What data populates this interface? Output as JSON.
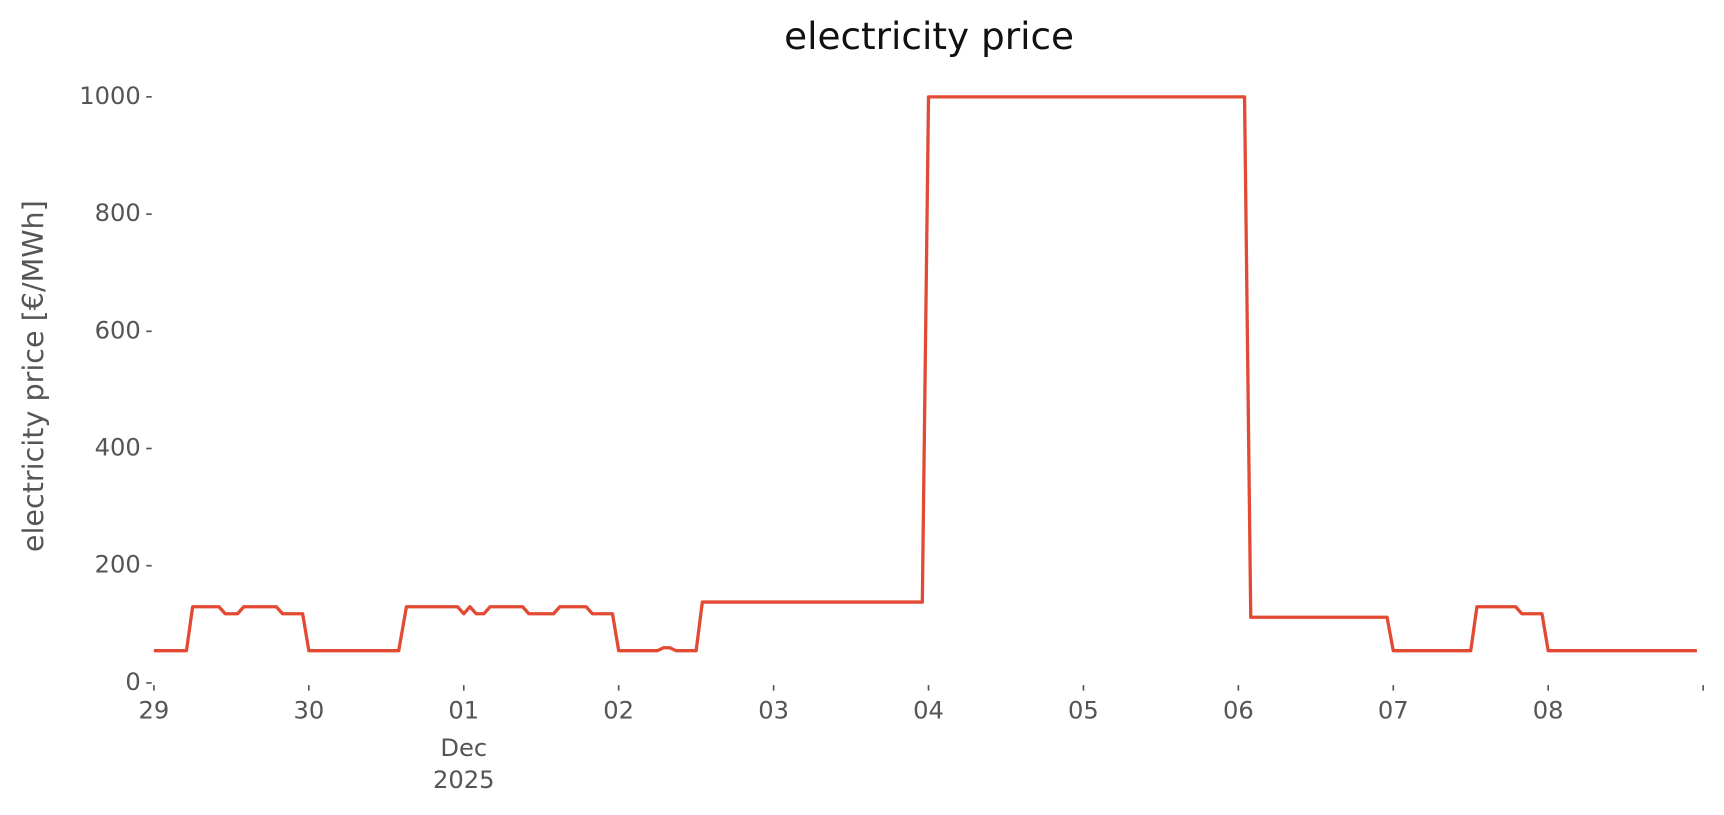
{
  "chart_data": {
    "type": "line",
    "title": "electricity price",
    "ylabel": "electricity price [€/MWh]",
    "color": "#e24a33",
    "x": [
      0,
      0.21,
      0.25,
      0.42,
      0.46,
      0.54,
      0.58,
      0.79,
      0.83,
      0.96,
      1.0,
      1.58,
      1.63,
      1.96,
      2.0,
      2.04,
      2.08,
      2.13,
      2.17,
      2.38,
      2.42,
      2.58,
      2.62,
      2.79,
      2.83,
      2.96,
      3.0,
      3.25,
      3.29,
      3.33,
      3.37,
      3.5,
      3.54,
      4.96,
      5.0,
      7.04,
      7.08,
      7.96,
      8.0,
      8.5,
      8.54,
      8.79,
      8.83,
      8.96,
      9.0,
      9.96
    ],
    "values": [
      55,
      55,
      130,
      130,
      118,
      118,
      130,
      130,
      118,
      118,
      55,
      55,
      130,
      130,
      118,
      130,
      118,
      118,
      130,
      130,
      118,
      118,
      130,
      130,
      118,
      118,
      55,
      55,
      60,
      60,
      55,
      55,
      138,
      138,
      1000,
      1000,
      112,
      112,
      55,
      55,
      130,
      130,
      118,
      118,
      55,
      55
    ],
    "xlim": [
      0,
      10
    ],
    "xticks": [
      {
        "value": 0,
        "label": "29"
      },
      {
        "value": 1,
        "label": "30"
      },
      {
        "value": 2,
        "label": "01"
      },
      {
        "value": 3,
        "label": "02"
      },
      {
        "value": 4,
        "label": "03"
      },
      {
        "value": 5,
        "label": "04"
      },
      {
        "value": 6,
        "label": "05"
      },
      {
        "value": 7,
        "label": "06"
      },
      {
        "value": 8,
        "label": "07"
      },
      {
        "value": 9,
        "label": "08"
      },
      {
        "value": 10,
        "label": null
      }
    ],
    "annotations": [
      "Dec",
      "2025"
    ],
    "ylim": [
      0,
      1000
    ],
    "yticks": [
      0,
      200,
      400,
      600,
      800,
      1000
    ],
    "grid": false
  }
}
